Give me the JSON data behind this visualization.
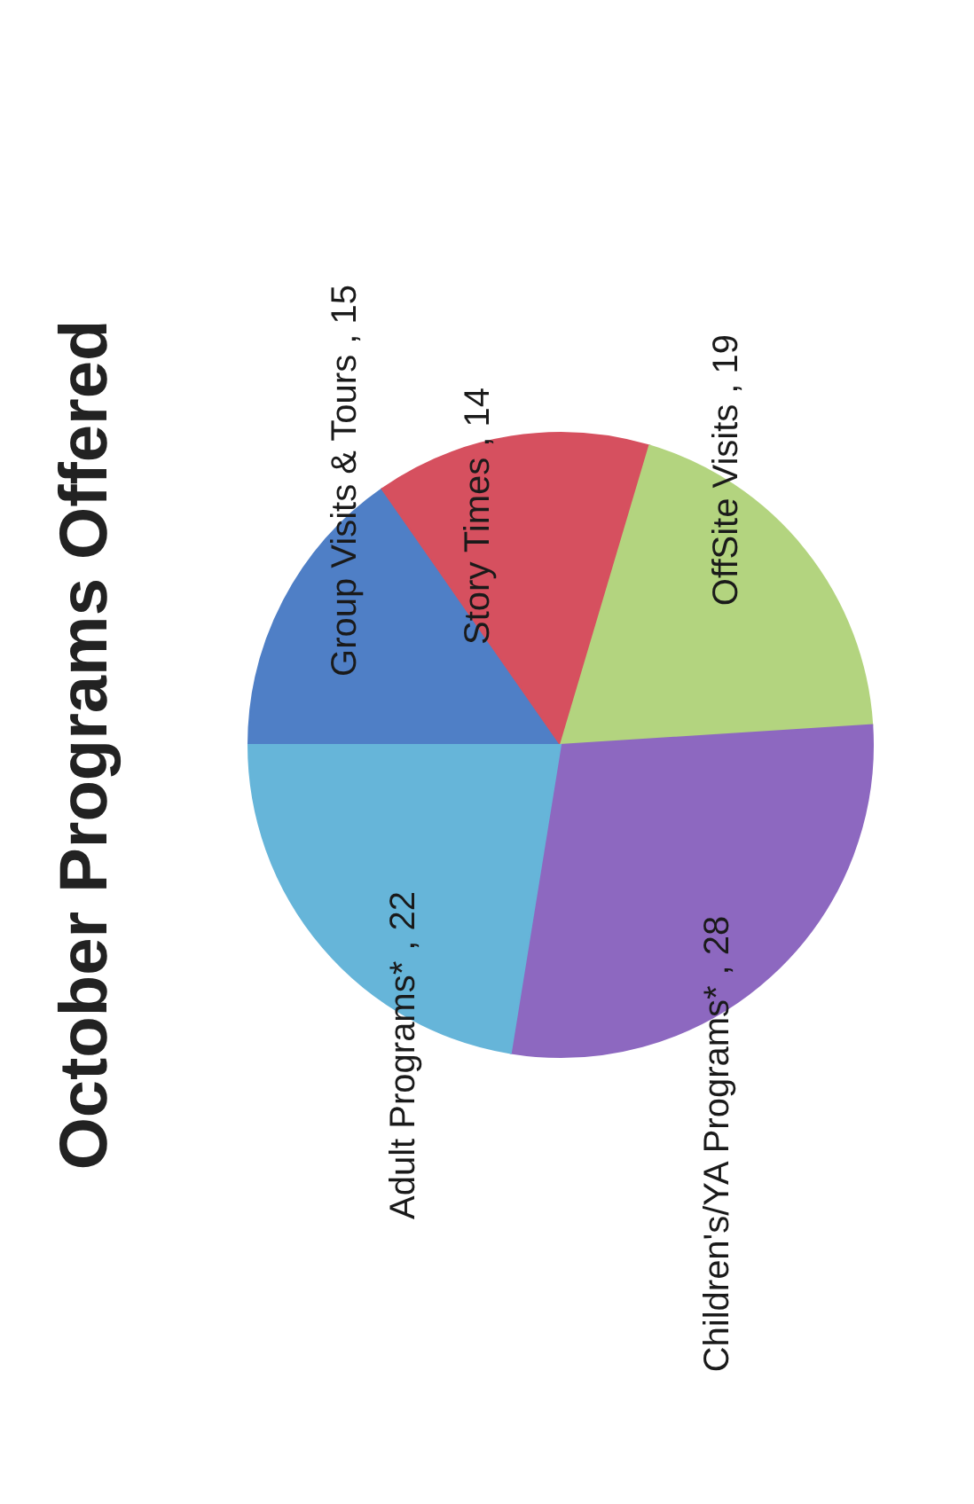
{
  "chart_data": {
    "type": "pie",
    "title": "October Programs Offered",
    "categories": [
      "Group Visits & Tours",
      "Story Times",
      "OffSite Visits",
      "Children's/YA Programs*",
      "Adult Programs*"
    ],
    "values": [
      15,
      14,
      19,
      28,
      22
    ],
    "value_labels": [
      ", 15",
      ", 14",
      ", 19",
      ", 28",
      ", 22"
    ],
    "colors": [
      "#4f7fc6",
      "#d6505f",
      "#b3d47f",
      "#8d68c0",
      "#66b5d9"
    ]
  }
}
